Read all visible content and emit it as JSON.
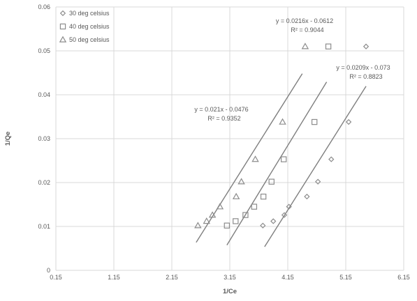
{
  "chart_data": {
    "type": "scatter",
    "xlabel": "1/Ce",
    "ylabel": "1/Qe",
    "xlim": [
      0.15,
      6.15
    ],
    "ylim": [
      0,
      0.06
    ],
    "x_ticks": [
      "0.15",
      "1.15",
      "2.15",
      "3.15",
      "4.15",
      "5.15",
      "6.15"
    ],
    "y_ticks": [
      "0",
      "0.01",
      "0.02",
      "0.03",
      "0.04",
      "0.05",
      "0.06"
    ],
    "grid": true,
    "legend_position": "top-left",
    "series": [
      {
        "name": "30 deg celsius",
        "marker": "diamond",
        "color": "#8c8c8c",
        "x": [
          3.72,
          3.9,
          4.09,
          4.17,
          4.48,
          4.67,
          4.9,
          5.2,
          5.5
        ],
        "y": [
          0.0102,
          0.0112,
          0.0126,
          0.0145,
          0.0168,
          0.0202,
          0.0253,
          0.0338,
          0.051
        ],
        "trendline": {
          "slope": 0.0209,
          "intercept": -0.073,
          "x_range": [
            3.75,
            5.5
          ]
        },
        "equation": "y = 0.0209x - 0.073",
        "r2": "R² = 0.8823"
      },
      {
        "name": "40 deg celsius",
        "marker": "square",
        "color": "#8c8c8c",
        "x": [
          3.1,
          3.25,
          3.42,
          3.57,
          3.73,
          3.87,
          4.08,
          4.61,
          4.85
        ],
        "y": [
          0.0102,
          0.0112,
          0.0126,
          0.0145,
          0.0168,
          0.0202,
          0.0253,
          0.0338,
          0.051
        ],
        "trendline": {
          "slope": 0.0216,
          "intercept": -0.0612,
          "x_range": [
            3.1,
            4.82
          ]
        },
        "equation": "y = 0.0216x - 0.0612",
        "r2": "R² = 0.9044"
      },
      {
        "name": "50 deg celsius",
        "marker": "triangle",
        "color": "#8c8c8c",
        "x": [
          2.6,
          2.75,
          2.85,
          2.98,
          3.26,
          3.35,
          3.59,
          4.06,
          4.45
        ],
        "y": [
          0.0102,
          0.0112,
          0.0126,
          0.0145,
          0.0168,
          0.0202,
          0.0253,
          0.0338,
          0.051
        ],
        "trendline": {
          "slope": 0.021,
          "intercept": -0.0476,
          "x_range": [
            2.57,
            4.4
          ]
        },
        "equation": "y = 0.021x - 0.0476",
        "r2": "R² = 0.9352"
      }
    ]
  }
}
